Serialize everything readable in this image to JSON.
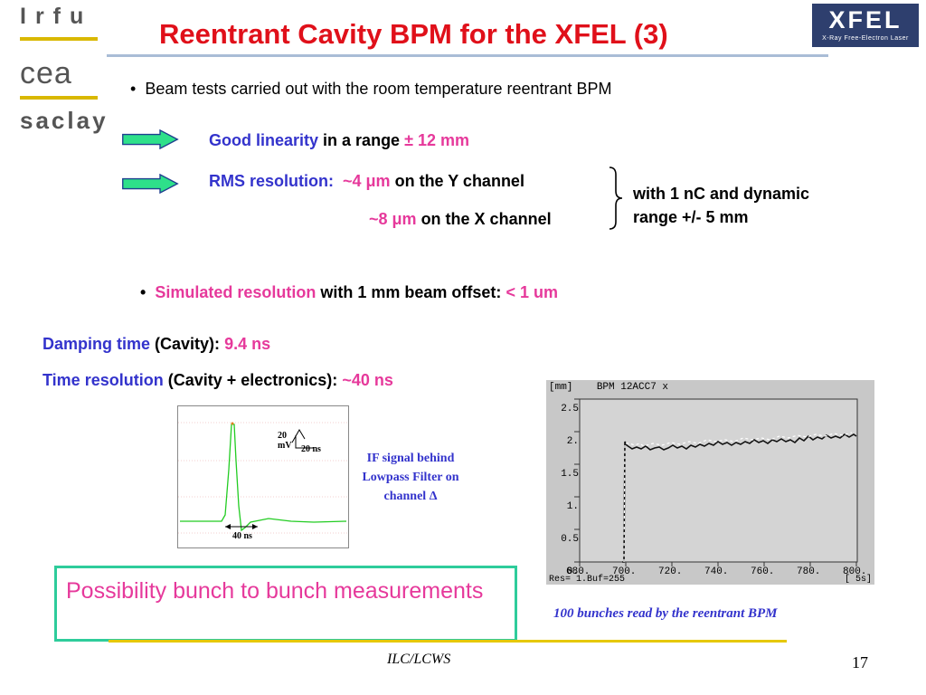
{
  "logos": {
    "irfu": "Irfu",
    "cea": "cea",
    "saclay": "saclay",
    "xfel_name": "XFEL",
    "xfel_sub": "X-Ray Free-Electron Laser"
  },
  "title": "Reentrant Cavity BPM for the XFEL (3)",
  "bullet1": "Beam tests carried out with the room temperature reentrant BPM",
  "linearity": {
    "label": "Good linearity",
    "text": "in a range",
    "value": "± 12 mm"
  },
  "rms": {
    "label": "RMS resolution:",
    "y_value": "~4 μm",
    "y_text": "on the Y channel",
    "x_value": "~8 μm",
    "x_text": "on the X channel",
    "note_line1": "with 1 nC and dynamic",
    "note_line2": "range +/-  5 mm"
  },
  "simulated": {
    "label": "Simulated resolution",
    "text": "with 1 mm beam offset",
    "colon": ":",
    "value": "< 1 um"
  },
  "damping": {
    "label": "Damping time",
    "text": "(Cavity):",
    "value": "9.4 ns"
  },
  "time_res": {
    "label": "Time resolution",
    "text": "(Cavity + electronics):",
    "value": "~40 ns"
  },
  "oscilloscope": {
    "scale_v": "20",
    "scale_v_unit": "mV",
    "scale_t": "20 ns",
    "width_label": "40 ns"
  },
  "if_caption": {
    "line1": "IF signal behind",
    "line2": "Lowpass Filter on",
    "line3": "channel Δ"
  },
  "bpm_plot": {
    "header_unit": "[mm]",
    "header_title": "BPM 12ACC7 x",
    "footer_left": "Res= 1.Buf=255",
    "footer_right": "[   5s]",
    "y_ticks": [
      "2.5",
      "2.",
      "1.5",
      "1.",
      "0.5",
      "0."
    ],
    "x_ticks": [
      "680.",
      "700.",
      "720.",
      "740.",
      "760.",
      "780.",
      "800."
    ]
  },
  "plot_caption": "100 bunches read by the reentrant BPM",
  "possibility": "Possibility bunch to bunch measurements",
  "footer": "ILC/LCWS",
  "page_number": "17",
  "colors": {
    "title": "#e0101a",
    "blue_text": "#3333cc",
    "magenta_text": "#e6399b",
    "arrow_fill": "#2ee08a",
    "box_border": "#2ecc9b",
    "footer_rule": "#e6c800"
  }
}
